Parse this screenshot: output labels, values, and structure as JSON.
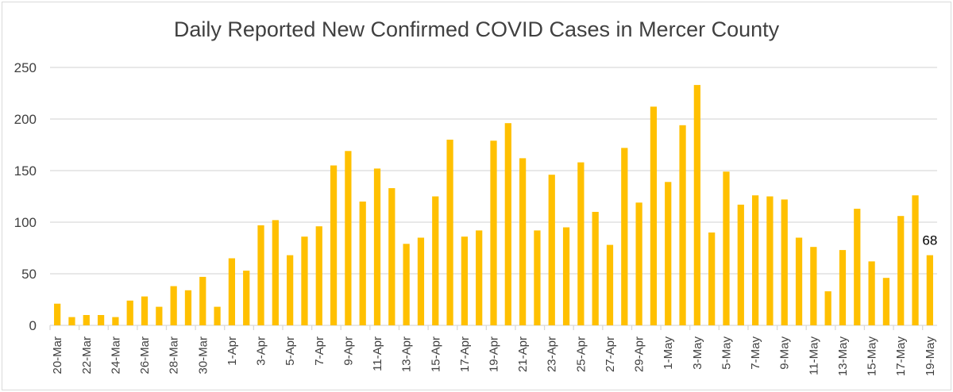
{
  "chart_data": {
    "type": "bar",
    "title": "Daily Reported New Confirmed COVID Cases in Mercer County",
    "xlabel": "",
    "ylabel": "",
    "ylim": [
      0,
      250
    ],
    "yticks": [
      0,
      50,
      100,
      150,
      200,
      250
    ],
    "grid": true,
    "bar_color": "#FFC000",
    "categories": [
      "20-Mar",
      "21-Mar",
      "22-Mar",
      "23-Mar",
      "24-Mar",
      "25-Mar",
      "26-Mar",
      "27-Mar",
      "28-Mar",
      "29-Mar",
      "30-Mar",
      "31-Mar",
      "1-Apr",
      "2-Apr",
      "3-Apr",
      "4-Apr",
      "5-Apr",
      "6-Apr",
      "7-Apr",
      "8-Apr",
      "9-Apr",
      "10-Apr",
      "11-Apr",
      "12-Apr",
      "13-Apr",
      "14-Apr",
      "15-Apr",
      "16-Apr",
      "17-Apr",
      "18-Apr",
      "19-Apr",
      "20-Apr",
      "21-Apr",
      "22-Apr",
      "23-Apr",
      "24-Apr",
      "25-Apr",
      "26-Apr",
      "27-Apr",
      "28-Apr",
      "29-Apr",
      "30-Apr",
      "1-May",
      "2-May",
      "3-May",
      "4-May",
      "5-May",
      "6-May",
      "7-May",
      "8-May",
      "9-May",
      "10-May",
      "11-May",
      "12-May",
      "13-May",
      "14-May",
      "15-May",
      "16-May",
      "17-May",
      "18-May",
      "19-May"
    ],
    "tick_labels": [
      "20-Mar",
      "22-Mar",
      "24-Mar",
      "26-Mar",
      "28-Mar",
      "30-Mar",
      "1-Apr",
      "3-Apr",
      "5-Apr",
      "7-Apr",
      "9-Apr",
      "11-Apr",
      "13-Apr",
      "15-Apr",
      "17-Apr",
      "19-Apr",
      "21-Apr",
      "23-Apr",
      "25-Apr",
      "27-Apr",
      "29-Apr",
      "1-May",
      "3-May",
      "5-May",
      "7-May",
      "9-May",
      "11-May",
      "13-May",
      "15-May",
      "17-May",
      "19-May"
    ],
    "values": [
      21,
      8,
      10,
      10,
      8,
      24,
      28,
      18,
      38,
      34,
      47,
      18,
      65,
      53,
      97,
      102,
      68,
      86,
      96,
      155,
      169,
      120,
      152,
      133,
      79,
      85,
      125,
      180,
      86,
      92,
      179,
      196,
      162,
      92,
      146,
      95,
      158,
      110,
      78,
      172,
      119,
      212,
      139,
      194,
      233,
      90,
      149,
      117,
      126,
      125,
      122,
      85,
      76,
      33,
      73,
      113,
      62,
      46,
      106,
      126,
      68
    ],
    "data_labels": [
      {
        "category": "19-May",
        "text": "68"
      }
    ]
  }
}
